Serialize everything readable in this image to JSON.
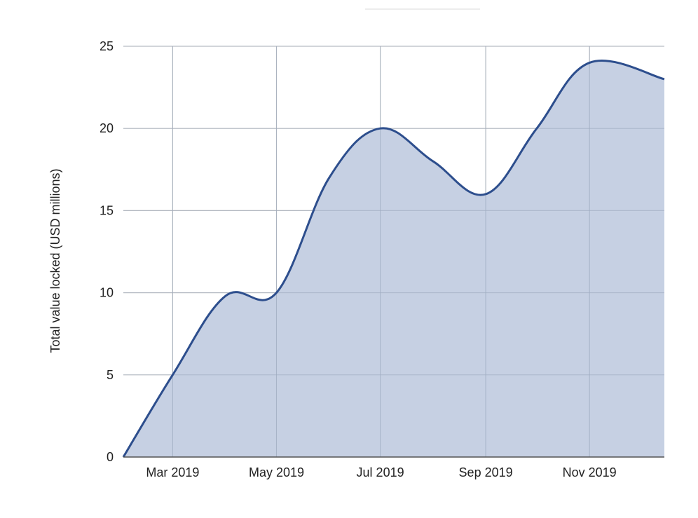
{
  "chart_data": {
    "type": "area",
    "title": "",
    "xlabel": "",
    "ylabel": "Total value locked (USD millions)",
    "ylim": [
      0,
      25
    ],
    "xlim": [
      "2019-01-31",
      "2019-12-15"
    ],
    "y_ticks": [
      0,
      5,
      10,
      15,
      20,
      25
    ],
    "x_ticks": [
      {
        "date": "2019-03-01",
        "label": "Mar 2019"
      },
      {
        "date": "2019-05-01",
        "label": "May 2019"
      },
      {
        "date": "2019-07-01",
        "label": "Jul 2019"
      },
      {
        "date": "2019-09-01",
        "label": "Sep 2019"
      },
      {
        "date": "2019-11-01",
        "label": "Nov 2019"
      }
    ],
    "grid": true,
    "legend": "none",
    "series": [
      {
        "x": [
          "2019-01-31",
          "2019-03-01",
          "2019-04-01",
          "2019-05-01",
          "2019-06-01",
          "2019-07-01",
          "2019-08-01",
          "2019-09-01",
          "2019-10-01",
          "2019-11-01",
          "2019-12-15"
        ],
        "values": [
          0,
          5,
          9.8,
          10,
          17,
          20,
          18,
          16,
          20,
          24,
          23
        ]
      }
    ],
    "colors": {
      "fill": "#bcc8de",
      "line": "#2d4e8d",
      "grid": "#c8c8c8",
      "axis_text": "#222222"
    }
  }
}
